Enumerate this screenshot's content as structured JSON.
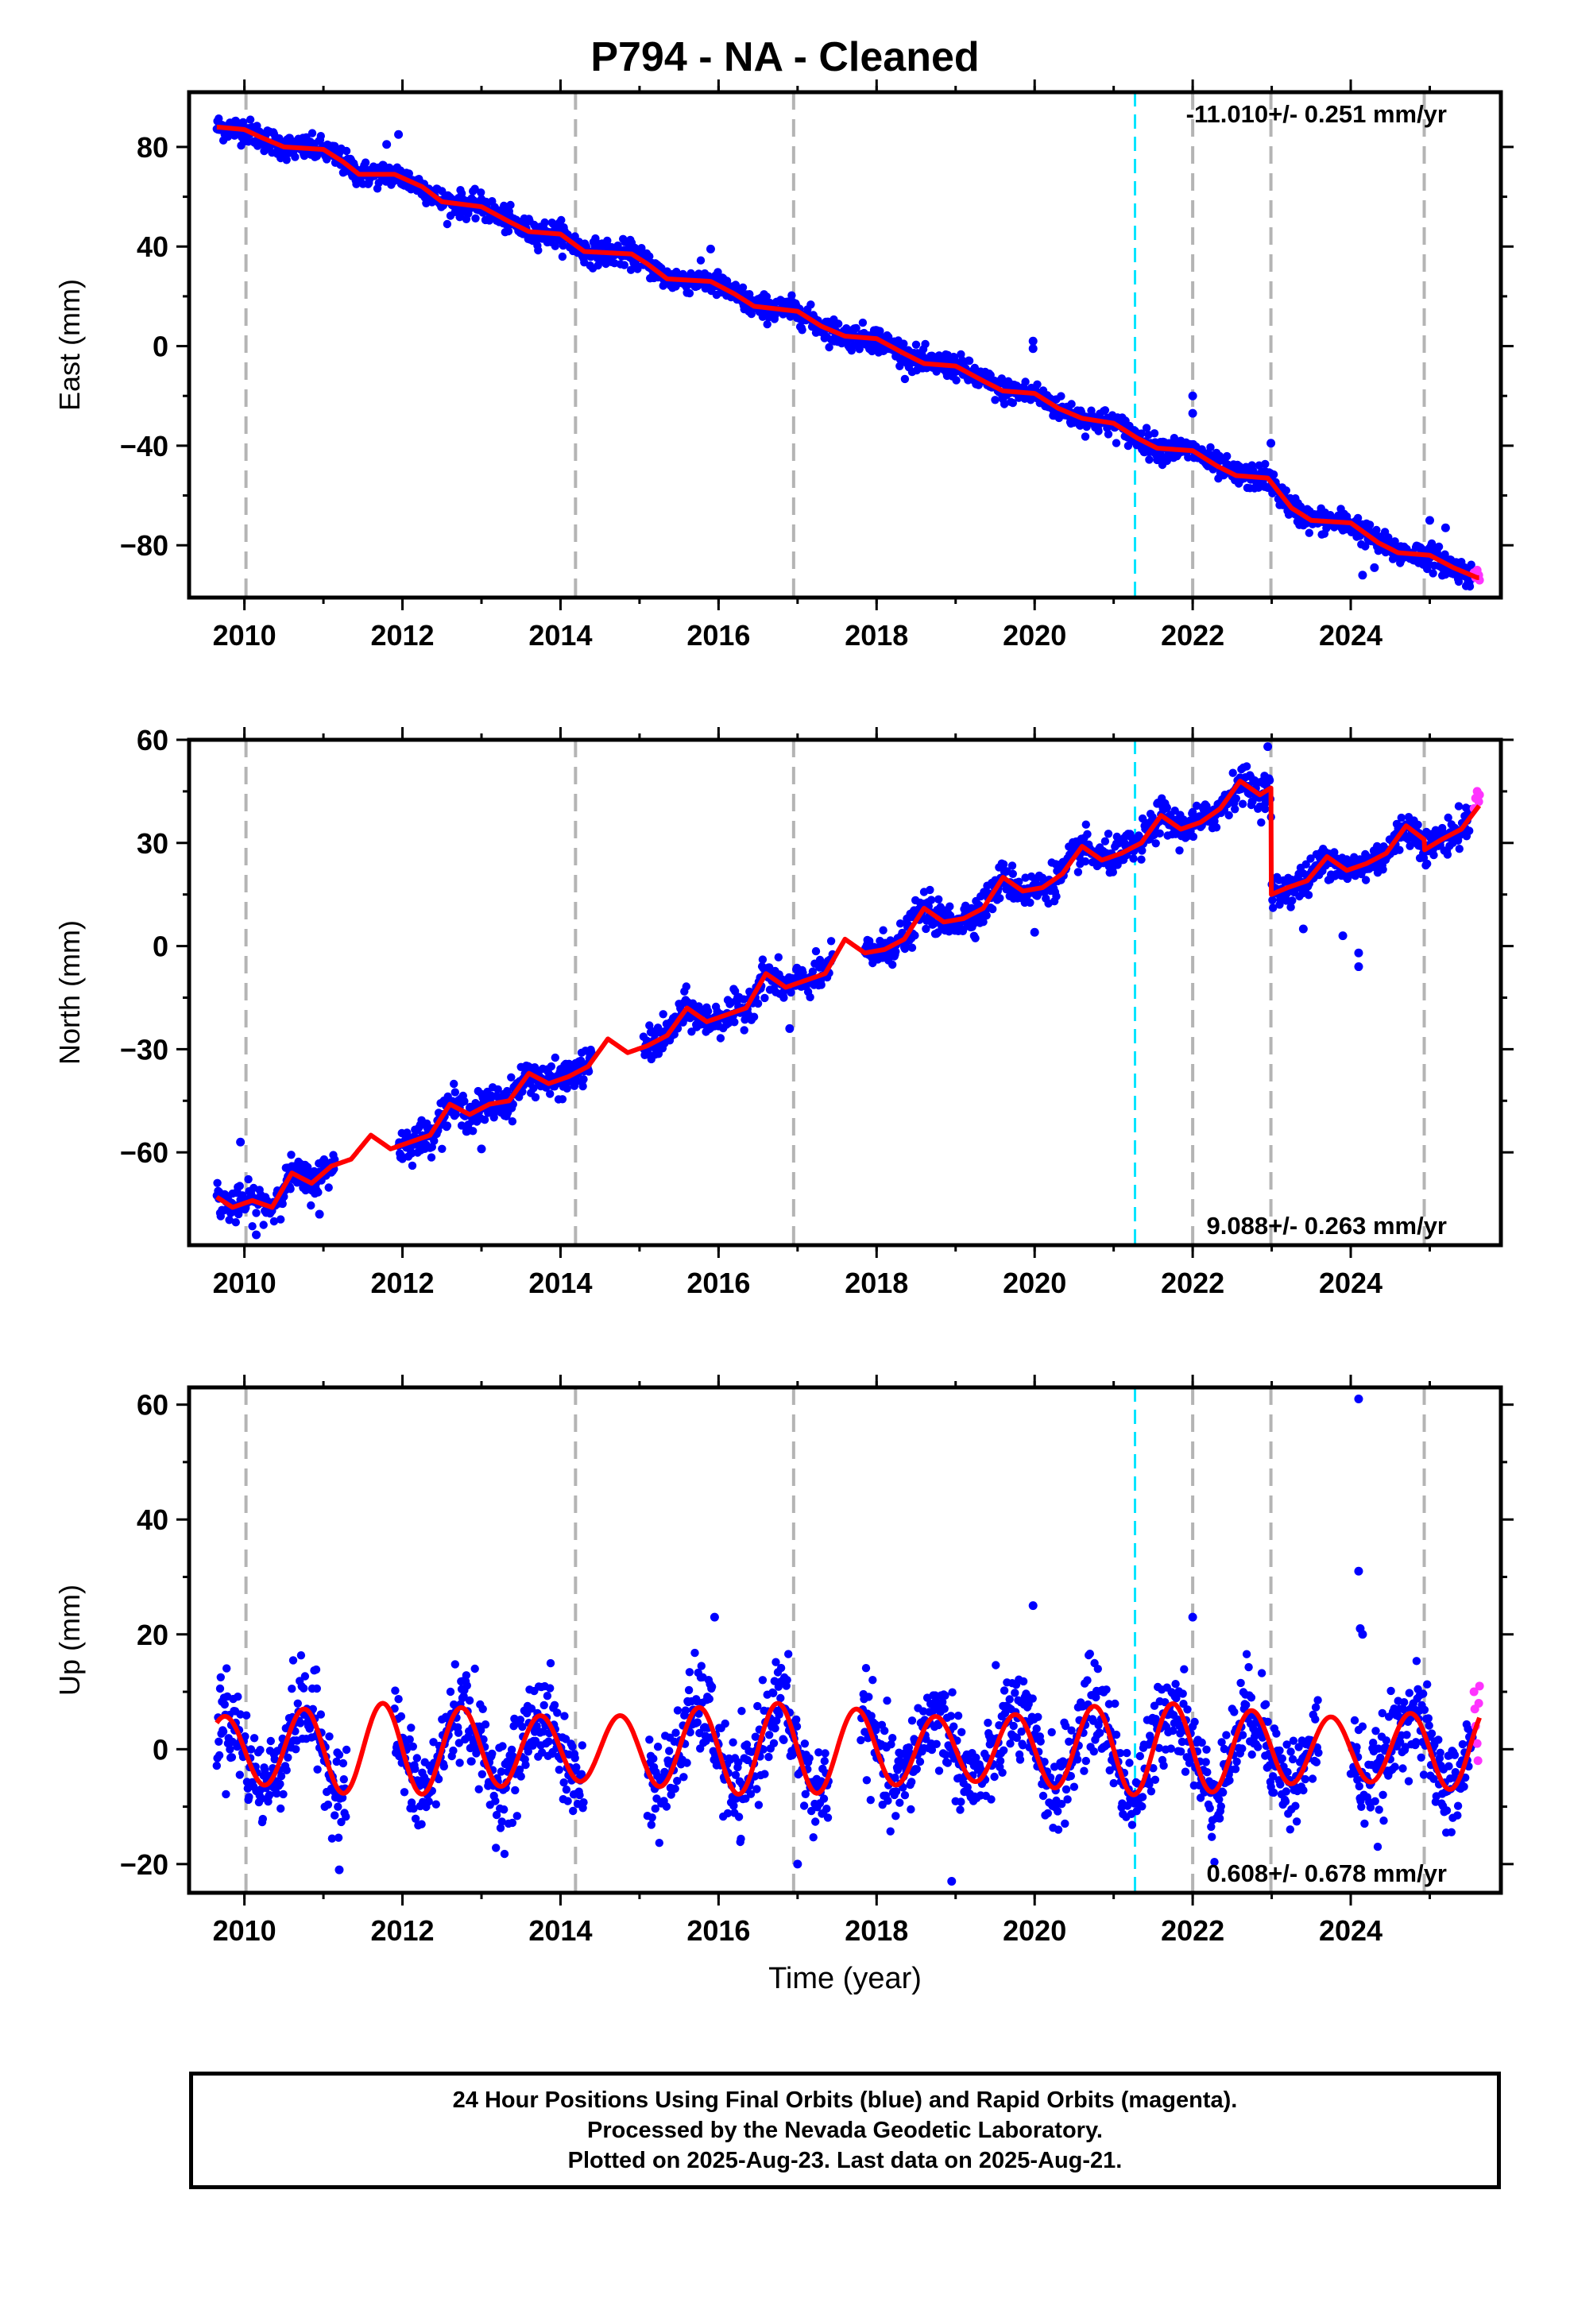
{
  "title": "P794  - NA - Cleaned",
  "x_axis_label": "Time (year)",
  "x_ticks": [
    2010,
    2012,
    2014,
    2016,
    2018,
    2020,
    2022,
    2024
  ],
  "footer": {
    "line1": "24 Hour Positions Using Final Orbits (blue) and Rapid Orbits (magenta).",
    "line2": "Processed by the Nevada Geodetic Laboratory.",
    "line3": "Plotted on 2025-Aug-23. Last data on 2025-Aug-21."
  },
  "colors": {
    "final_orbits": "#0000ff",
    "rapid_orbits": "#ff33ff",
    "model": "#ff0000",
    "equipment_change": "#b4b4b4",
    "other_event": "#00e5ff"
  },
  "chart_data": [
    {
      "type": "scatter",
      "component": "east",
      "ylabel": "East (mm)",
      "xlim": [
        2009.3,
        2025.9
      ],
      "ylim": [
        -101,
        102
      ],
      "yticks": [
        80,
        40,
        0,
        -40,
        -80
      ],
      "rate_label": "-11.010+/- 0.251 mm/yr",
      "rate_position": "top-right",
      "rate": -11.01,
      "equipment_change_epochs": [
        2010.02,
        2014.19,
        2016.95,
        2022.0,
        2022.99,
        2024.93
      ],
      "other_event_epochs": [
        2021.27
      ],
      "model_line": [
        {
          "x": 2009.65,
          "y": 88
        },
        {
          "x": 2010.0,
          "y": 87
        },
        {
          "x": 2010.2,
          "y": 84
        },
        {
          "x": 2010.5,
          "y": 80
        },
        {
          "x": 2011.0,
          "y": 79
        },
        {
          "x": 2011.25,
          "y": 74
        },
        {
          "x": 2011.45,
          "y": 69
        },
        {
          "x": 2011.9,
          "y": 69
        },
        {
          "x": 2012.25,
          "y": 64
        },
        {
          "x": 2012.5,
          "y": 58
        },
        {
          "x": 2013.0,
          "y": 56
        },
        {
          "x": 2013.35,
          "y": 50
        },
        {
          "x": 2013.6,
          "y": 46
        },
        {
          "x": 2014.0,
          "y": 45
        },
        {
          "x": 2014.3,
          "y": 38
        },
        {
          "x": 2014.9,
          "y": 37
        },
        {
          "x": 2015.1,
          "y": 33
        },
        {
          "x": 2015.35,
          "y": 27
        },
        {
          "x": 2015.9,
          "y": 26
        },
        {
          "x": 2016.2,
          "y": 21
        },
        {
          "x": 2016.45,
          "y": 16
        },
        {
          "x": 2017.0,
          "y": 14
        },
        {
          "x": 2017.3,
          "y": 8
        },
        {
          "x": 2017.6,
          "y": 4
        },
        {
          "x": 2018.0,
          "y": 3
        },
        {
          "x": 2018.35,
          "y": -3
        },
        {
          "x": 2018.6,
          "y": -7
        },
        {
          "x": 2019.0,
          "y": -8
        },
        {
          "x": 2019.35,
          "y": -14
        },
        {
          "x": 2019.6,
          "y": -18
        },
        {
          "x": 2020.0,
          "y": -19
        },
        {
          "x": 2020.3,
          "y": -25
        },
        {
          "x": 2020.6,
          "y": -29
        },
        {
          "x": 2021.0,
          "y": -31
        },
        {
          "x": 2021.3,
          "y": -37
        },
        {
          "x": 2021.55,
          "y": -41
        },
        {
          "x": 2022.0,
          "y": -42
        },
        {
          "x": 2022.3,
          "y": -48
        },
        {
          "x": 2022.55,
          "y": -52
        },
        {
          "x": 2022.95,
          "y": -53
        },
        {
          "x": 2023.25,
          "y": -65
        },
        {
          "x": 2023.5,
          "y": -70
        },
        {
          "x": 2024.0,
          "y": -71
        },
        {
          "x": 2024.35,
          "y": -79
        },
        {
          "x": 2024.6,
          "y": -83
        },
        {
          "x": 2025.0,
          "y": -84
        },
        {
          "x": 2025.3,
          "y": -89
        },
        {
          "x": 2025.6,
          "y": -93
        }
      ],
      "trend_segments": [
        {
          "x0": 2009.65,
          "x1": 2025.63,
          "y0": 87.5,
          "y1": -92.5,
          "amp": 2.2,
          "phase": 0.0
        }
      ],
      "scatter_noise_mm": 2.5,
      "outliers": [
        {
          "x": 2011.95,
          "y": 85
        },
        {
          "x": 2011.8,
          "y": 81
        },
        {
          "x": 2015.9,
          "y": 39
        },
        {
          "x": 2019.98,
          "y": 2
        },
        {
          "x": 2019.98,
          "y": -1
        },
        {
          "x": 2022.0,
          "y": -20
        },
        {
          "x": 2022.0,
          "y": -27
        },
        {
          "x": 2022.99,
          "y": -39
        },
        {
          "x": 2024.15,
          "y": -92
        },
        {
          "x": 2024.3,
          "y": -89
        },
        {
          "x": 2025.0,
          "y": -70
        },
        {
          "x": 2025.2,
          "y": -73
        }
      ],
      "rapid_points": [
        {
          "x": 2025.56,
          "y": -91
        },
        {
          "x": 2025.58,
          "y": -93
        },
        {
          "x": 2025.6,
          "y": -90
        },
        {
          "x": 2025.62,
          "y": -92
        },
        {
          "x": 2025.63,
          "y": -94
        }
      ]
    },
    {
      "type": "scatter",
      "component": "north",
      "ylabel": "North (mm)",
      "xlim": [
        2009.3,
        2025.9
      ],
      "ylim": [
        -87,
        60
      ],
      "yticks": [
        60,
        30,
        0,
        -30,
        -60
      ],
      "rate_label": "9.088+/- 0.263 mm/yr",
      "rate_position": "bottom-right",
      "rate": 9.088,
      "equipment_change_epochs": [
        2010.02,
        2014.19,
        2016.95,
        2022.0,
        2022.99,
        2024.93
      ],
      "other_event_epochs": [
        2021.27
      ],
      "model_line": [
        {
          "x": 2009.65,
          "y": -73
        },
        {
          "x": 2009.85,
          "y": -76
        },
        {
          "x": 2010.1,
          "y": -74
        },
        {
          "x": 2010.35,
          "y": -76
        },
        {
          "x": 2010.6,
          "y": -66
        },
        {
          "x": 2010.85,
          "y": -69
        },
        {
          "x": 2011.1,
          "y": -64
        },
        {
          "x": 2011.35,
          "y": -62
        },
        {
          "x": 2011.6,
          "y": -55
        },
        {
          "x": 2011.85,
          "y": -59
        },
        {
          "x": 2012.1,
          "y": -57
        },
        {
          "x": 2012.35,
          "y": -55
        },
        {
          "x": 2012.6,
          "y": -46
        },
        {
          "x": 2012.85,
          "y": -49
        },
        {
          "x": 2013.1,
          "y": -46
        },
        {
          "x": 2013.35,
          "y": -45
        },
        {
          "x": 2013.6,
          "y": -37
        },
        {
          "x": 2013.85,
          "y": -40
        },
        {
          "x": 2014.1,
          "y": -38
        },
        {
          "x": 2014.35,
          "y": -35
        },
        {
          "x": 2014.6,
          "y": -27
        },
        {
          "x": 2014.85,
          "y": -31
        },
        {
          "x": 2015.1,
          "y": -29
        },
        {
          "x": 2015.35,
          "y": -26
        },
        {
          "x": 2015.6,
          "y": -18
        },
        {
          "x": 2015.85,
          "y": -22
        },
        {
          "x": 2016.1,
          "y": -20
        },
        {
          "x": 2016.35,
          "y": -18
        },
        {
          "x": 2016.6,
          "y": -8
        },
        {
          "x": 2016.85,
          "y": -12
        },
        {
          "x": 2017.1,
          "y": -10
        },
        {
          "x": 2017.35,
          "y": -8
        },
        {
          "x": 2017.6,
          "y": 2
        },
        {
          "x": 2017.85,
          "y": -2
        },
        {
          "x": 2018.1,
          "y": -1
        },
        {
          "x": 2018.35,
          "y": 2
        },
        {
          "x": 2018.6,
          "y": 11
        },
        {
          "x": 2018.85,
          "y": 7
        },
        {
          "x": 2019.1,
          "y": 8
        },
        {
          "x": 2019.35,
          "y": 11
        },
        {
          "x": 2019.6,
          "y": 20
        },
        {
          "x": 2019.85,
          "y": 16
        },
        {
          "x": 2020.1,
          "y": 17
        },
        {
          "x": 2020.35,
          "y": 21
        },
        {
          "x": 2020.6,
          "y": 29
        },
        {
          "x": 2020.85,
          "y": 25
        },
        {
          "x": 2021.1,
          "y": 27
        },
        {
          "x": 2021.35,
          "y": 30
        },
        {
          "x": 2021.6,
          "y": 38
        },
        {
          "x": 2021.85,
          "y": 34
        },
        {
          "x": 2022.1,
          "y": 36
        },
        {
          "x": 2022.35,
          "y": 40
        },
        {
          "x": 2022.6,
          "y": 48
        },
        {
          "x": 2022.85,
          "y": 44
        },
        {
          "x": 2022.99,
          "y": 46
        },
        {
          "x": 2022.995,
          "y": 15
        },
        {
          "x": 2023.2,
          "y": 17
        },
        {
          "x": 2023.45,
          "y": 19
        },
        {
          "x": 2023.7,
          "y": 26
        },
        {
          "x": 2023.95,
          "y": 22
        },
        {
          "x": 2024.2,
          "y": 24
        },
        {
          "x": 2024.45,
          "y": 27
        },
        {
          "x": 2024.7,
          "y": 35
        },
        {
          "x": 2024.93,
          "y": 31
        },
        {
          "x": 2024.935,
          "y": 28
        },
        {
          "x": 2025.15,
          "y": 31
        },
        {
          "x": 2025.4,
          "y": 34
        },
        {
          "x": 2025.63,
          "y": 41
        }
      ],
      "scatter_noise_mm": 2.5,
      "outliers": [
        {
          "x": 2009.95,
          "y": -57
        },
        {
          "x": 2010.15,
          "y": -84
        },
        {
          "x": 2010.95,
          "y": -78
        },
        {
          "x": 2013.0,
          "y": -59
        },
        {
          "x": 2016.9,
          "y": -24
        },
        {
          "x": 2020.0,
          "y": 4
        },
        {
          "x": 2022.95,
          "y": 58
        },
        {
          "x": 2023.4,
          "y": 5
        },
        {
          "x": 2024.1,
          "y": -6
        },
        {
          "x": 2024.1,
          "y": -2
        },
        {
          "x": 2023.9,
          "y": 3
        }
      ],
      "gaps": [
        [
          2011.15,
          2011.95
        ],
        [
          2014.4,
          2015.05
        ],
        [
          2017.45,
          2017.85
        ]
      ],
      "rapid_points": [
        {
          "x": 2025.56,
          "y": 40
        },
        {
          "x": 2025.58,
          "y": 43
        },
        {
          "x": 2025.6,
          "y": 45
        },
        {
          "x": 2025.62,
          "y": 42
        },
        {
          "x": 2025.63,
          "y": 44
        }
      ]
    },
    {
      "type": "scatter",
      "component": "up",
      "ylabel": "Up (mm)",
      "xlim": [
        2009.3,
        2025.9
      ],
      "ylim": [
        -25,
        63
      ],
      "yticks": [
        60,
        40,
        20,
        0,
        -20
      ],
      "rate_label": "0.608+/- 0.678 mm/yr",
      "rate_position": "bottom-right",
      "rate": 0.608,
      "equipment_change_epochs": [
        2010.02,
        2014.19,
        2016.95,
        2022.0,
        2022.99,
        2024.93
      ],
      "other_event_epochs": [
        2021.27
      ],
      "seasonal_amplitude_mm": 8,
      "model_peak_epoch": 2009.75,
      "scatter_noise_mm": 4,
      "outliers": [
        {
          "x": 2024.1,
          "y": 61
        },
        {
          "x": 2024.1,
          "y": 31
        },
        {
          "x": 2024.12,
          "y": 21
        },
        {
          "x": 2024.15,
          "y": 20
        },
        {
          "x": 2019.98,
          "y": 25
        },
        {
          "x": 2015.95,
          "y": 23
        },
        {
          "x": 2022.0,
          "y": 23
        },
        {
          "x": 2018.95,
          "y": -23
        },
        {
          "x": 2011.2,
          "y": -21
        },
        {
          "x": 2017.0,
          "y": -20
        }
      ],
      "gaps": [
        [
          2011.3,
          2011.9
        ],
        [
          2014.3,
          2015.1
        ],
        [
          2017.4,
          2017.8
        ],
        [
          2023.6,
          2024.0
        ]
      ],
      "rapid_points": [
        {
          "x": 2025.56,
          "y": 10
        },
        {
          "x": 2025.57,
          "y": 7
        },
        {
          "x": 2025.58,
          "y": 4
        },
        {
          "x": 2025.6,
          "y": 1
        },
        {
          "x": 2025.61,
          "y": -2
        },
        {
          "x": 2025.62,
          "y": 8
        },
        {
          "x": 2025.63,
          "y": 11
        }
      ]
    }
  ]
}
